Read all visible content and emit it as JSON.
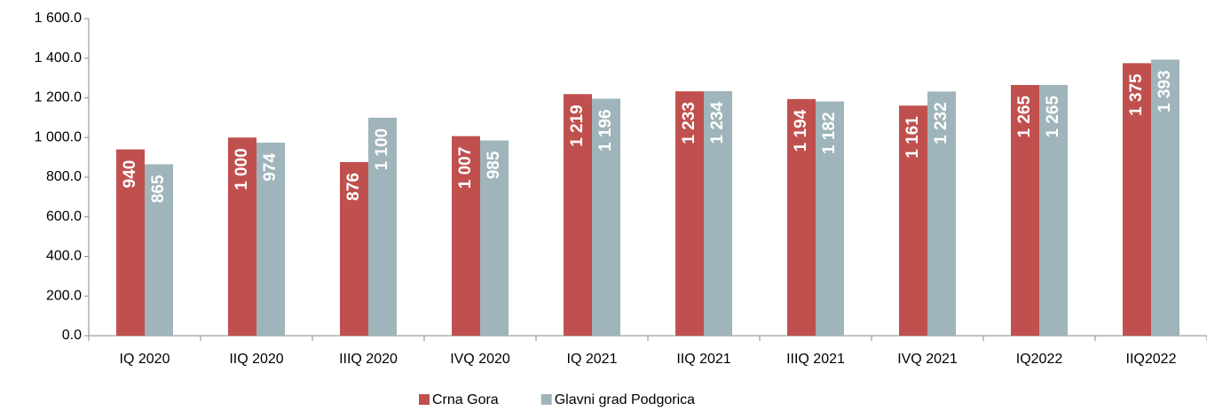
{
  "chart_data": {
    "type": "bar",
    "categories": [
      "IQ 2020",
      "IIQ 2020",
      "IIIQ 2020",
      "IVQ 2020",
      "IQ 2021",
      "IIQ 2021",
      "IIIQ 2021",
      "IVQ 2021",
      "IQ2022",
      "IIQ2022"
    ],
    "series": [
      {
        "name": "Crna Gora",
        "color": "#c0504d",
        "values": [
          940,
          1000,
          876,
          1007,
          1219,
          1233,
          1194,
          1161,
          1265,
          1375
        ],
        "value_labels": [
          "940",
          "1 000",
          "876",
          "1 007",
          "1 219",
          "1 233",
          "1 194",
          "1 161",
          "1 265",
          "1 375"
        ]
      },
      {
        "name": "Glavni grad Podgorica",
        "color": "#9fb4bb",
        "values": [
          865,
          974,
          1100,
          985,
          1196,
          1234,
          1182,
          1232,
          1265,
          1393
        ],
        "value_labels": [
          "865",
          "974",
          "1 100",
          "985",
          "1 196",
          "1 234",
          "1 182",
          "1 232",
          "1 265",
          "1 393"
        ]
      }
    ],
    "ylim": [
      0,
      1600
    ],
    "yticks": [
      {
        "value": 0,
        "label": "0.0"
      },
      {
        "value": 200,
        "label": "200.0"
      },
      {
        "value": 400,
        "label": "400.0"
      },
      {
        "value": 600,
        "label": "600.0"
      },
      {
        "value": 800,
        "label": "800.0"
      },
      {
        "value": 1000,
        "label": "1 000.0"
      },
      {
        "value": 1200,
        "label": "1 200.0"
      },
      {
        "value": 1400,
        "label": "1 400.0"
      },
      {
        "value": 1600,
        "label": "1 600.0"
      }
    ],
    "legend": "bottom"
  }
}
